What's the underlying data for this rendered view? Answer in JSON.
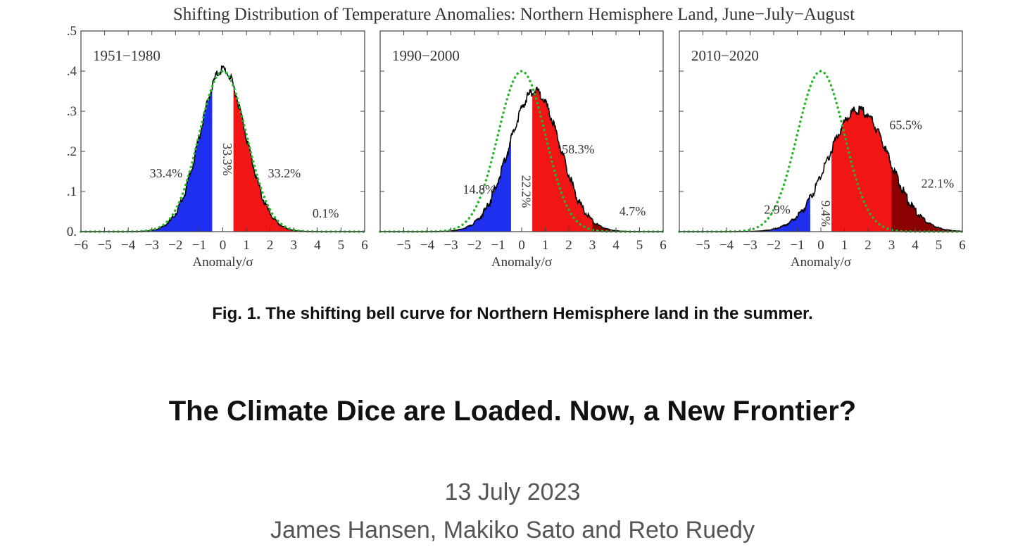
{
  "figure": {
    "title": "Shifting Distribution of Temperature Anomalies: Northern Hemisphere Land, June−July−August",
    "colors": {
      "cold": "#1e2ff0",
      "warm": "#f21515",
      "extreme": "#8b0000",
      "reference": "#27b52a",
      "observed": "#000000"
    }
  },
  "chart_data": [
    {
      "type": "area",
      "panel_label": "1951−1980",
      "xlabel": "Anomaly/σ",
      "ylabel": "",
      "xlim": [
        -6,
        6
      ],
      "ylim": [
        0,
        0.5
      ],
      "x_ticks": [
        "−6",
        "−5",
        "−4",
        "−3",
        "−2",
        "−1",
        "0",
        "1",
        "2",
        "3",
        "4",
        "5",
        "6"
      ],
      "y_ticks": [
        "0.",
        ".1",
        ".2",
        ".3",
        ".4",
        ".5"
      ],
      "observed": {
        "mean": 0.0,
        "sd": 0.97,
        "peak": 0.41
      },
      "reference": {
        "mean": 0,
        "sd": 1,
        "peak": 0.4
      },
      "shading": [
        {
          "from": -0.43,
          "to": 0.43,
          "band": "white"
        },
        {
          "from": -6,
          "to": -0.43,
          "band": "cold"
        },
        {
          "from": 0.43,
          "to": 3,
          "band": "warm"
        },
        {
          "from": 3,
          "to": 6,
          "band": "extreme"
        }
      ],
      "annotations": [
        {
          "text": "33.4%",
          "x": -2.4,
          "y": 0.135,
          "rotate": false
        },
        {
          "text": "33.3%",
          "x": 0.02,
          "y": 0.18,
          "rotate": true
        },
        {
          "text": "33.2%",
          "x": 2.6,
          "y": 0.135,
          "rotate": false
        },
        {
          "text": "0.1%",
          "x": 4.35,
          "y": 0.035,
          "rotate": false
        }
      ]
    },
    {
      "type": "area",
      "panel_label": "1990−2000",
      "xlabel": "Anomaly/σ",
      "ylabel": "",
      "xlim": [
        -6,
        6
      ],
      "ylim": [
        0,
        0.5
      ],
      "x_ticks": [
        "−5",
        "−4",
        "−3",
        "−2",
        "−1",
        "0",
        "1",
        "2",
        "3",
        "4",
        "5",
        "6"
      ],
      "y_ticks": [],
      "observed": {
        "mean": 0.55,
        "sd": 1.1,
        "peak": 0.355
      },
      "reference": {
        "mean": 0,
        "sd": 1,
        "peak": 0.4
      },
      "shading": [
        {
          "from": -0.43,
          "to": 0.43,
          "band": "white"
        },
        {
          "from": -6,
          "to": -0.43,
          "band": "cold"
        },
        {
          "from": 0.43,
          "to": 3,
          "band": "warm"
        },
        {
          "from": 3,
          "to": 6,
          "band": "extreme"
        }
      ],
      "annotations": [
        {
          "text": "14.8%",
          "x": -1.8,
          "y": 0.095,
          "rotate": false
        },
        {
          "text": "22.2%",
          "x": 0.02,
          "y": 0.1,
          "rotate": true
        },
        {
          "text": "58.3%",
          "x": 2.4,
          "y": 0.195,
          "rotate": false
        },
        {
          "text": "4.7%",
          "x": 4.7,
          "y": 0.04,
          "rotate": false
        }
      ]
    },
    {
      "type": "area",
      "panel_label": "2010−2020",
      "xlabel": "Anomaly/σ",
      "ylabel": "",
      "xlim": [
        -6,
        6
      ],
      "ylim": [
        0,
        0.5
      ],
      "x_ticks": [
        "−5",
        "−4",
        "−3",
        "−2",
        "−1",
        "0",
        "1",
        "2",
        "3",
        "4",
        "5",
        "6"
      ],
      "y_ticks": [],
      "observed": {
        "mean": 1.6,
        "sd": 1.3,
        "peak": 0.31
      },
      "reference": {
        "mean": 0,
        "sd": 1,
        "peak": 0.4
      },
      "shading": [
        {
          "from": -0.43,
          "to": 0.43,
          "band": "white"
        },
        {
          "from": -6,
          "to": -0.43,
          "band": "cold"
        },
        {
          "from": 0.43,
          "to": 3,
          "band": "warm"
        },
        {
          "from": 3,
          "to": 6,
          "band": "extreme"
        }
      ],
      "annotations": [
        {
          "text": "2.9%",
          "x": -1.85,
          "y": 0.045,
          "rotate": false
        },
        {
          "text": "9.4%",
          "x": 0.02,
          "y": 0.045,
          "rotate": true
        },
        {
          "text": "65.5%",
          "x": 3.6,
          "y": 0.255,
          "rotate": false
        },
        {
          "text": "22.1%",
          "x": 4.95,
          "y": 0.11,
          "rotate": false
        }
      ]
    }
  ],
  "caption": "Fig. 1. The shifting bell curve for Northern Hemisphere land in the summer.",
  "headline": "The Climate Dice are Loaded. Now, a New Frontier?",
  "date": "13 July 2023",
  "authors": "James Hansen, Makiko Sato and Reto Ruedy"
}
